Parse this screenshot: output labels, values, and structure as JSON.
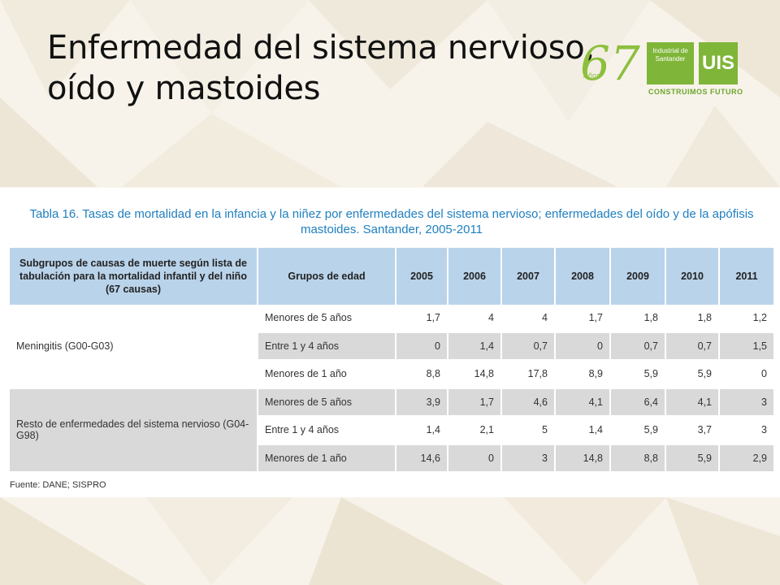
{
  "title": "Enfermedad del sistema nervioso, oído y mastoides",
  "logo": {
    "number": "67",
    "anos": "Años",
    "institution": "Industrial de Santander",
    "mark": "UIS",
    "tagline": "CONSTRUIMOS FUTURO"
  },
  "table": {
    "caption_line1": "Tabla 16. Tasas de mortalidad en la infancia y la niñez por enfermedades del sistema nervioso; enfermedades del oído y de la apófisis",
    "caption_line2": "mastoides. Santander, 2005-2011",
    "headers": {
      "subgroup": "Subgrupos de causas de muerte según lista de tabulación para la mortalidad infantil y del niño (67 causas)",
      "age_group": "Grupos de edad",
      "years": [
        "2005",
        "2006",
        "2007",
        "2008",
        "2009",
        "2010",
        "2011"
      ]
    },
    "groups": [
      {
        "name": "Meningitis (G00-G03)",
        "rows": [
          {
            "age": "Menores de 5 años",
            "values": [
              "1,7",
              "4",
              "4",
              "1,7",
              "1,8",
              "1,8",
              "1,2"
            ]
          },
          {
            "age": "Entre 1 y 4 años",
            "values": [
              "0",
              "1,4",
              "0,7",
              "0",
              "0,7",
              "0,7",
              "1,5"
            ]
          },
          {
            "age": "Menores de 1 año",
            "values": [
              "8,8",
              "14,8",
              "17,8",
              "8,9",
              "5,9",
              "5,9",
              "0"
            ]
          }
        ]
      },
      {
        "name": "Resto de enfermedades del sistema nervioso (G04-G98)",
        "rows": [
          {
            "age": "Menores de 5 años",
            "values": [
              "3,9",
              "1,7",
              "4,6",
              "4,1",
              "6,4",
              "4,1",
              "3"
            ]
          },
          {
            "age": "Entre 1 y 4 años",
            "values": [
              "1,4",
              "2,1",
              "5",
              "1,4",
              "5,9",
              "3,7",
              "3"
            ]
          },
          {
            "age": "Menores de 1 año",
            "values": [
              "14,6",
              "0",
              "3",
              "14,8",
              "8,8",
              "5,9",
              "2,9"
            ]
          }
        ]
      }
    ],
    "source": "Fuente: DANE; SISPRO"
  },
  "colors": {
    "header_bg": "#b9d3ea",
    "shade_bg": "#d9d9d9",
    "caption": "#1f7fbf",
    "brand_green": "#7fb539"
  }
}
